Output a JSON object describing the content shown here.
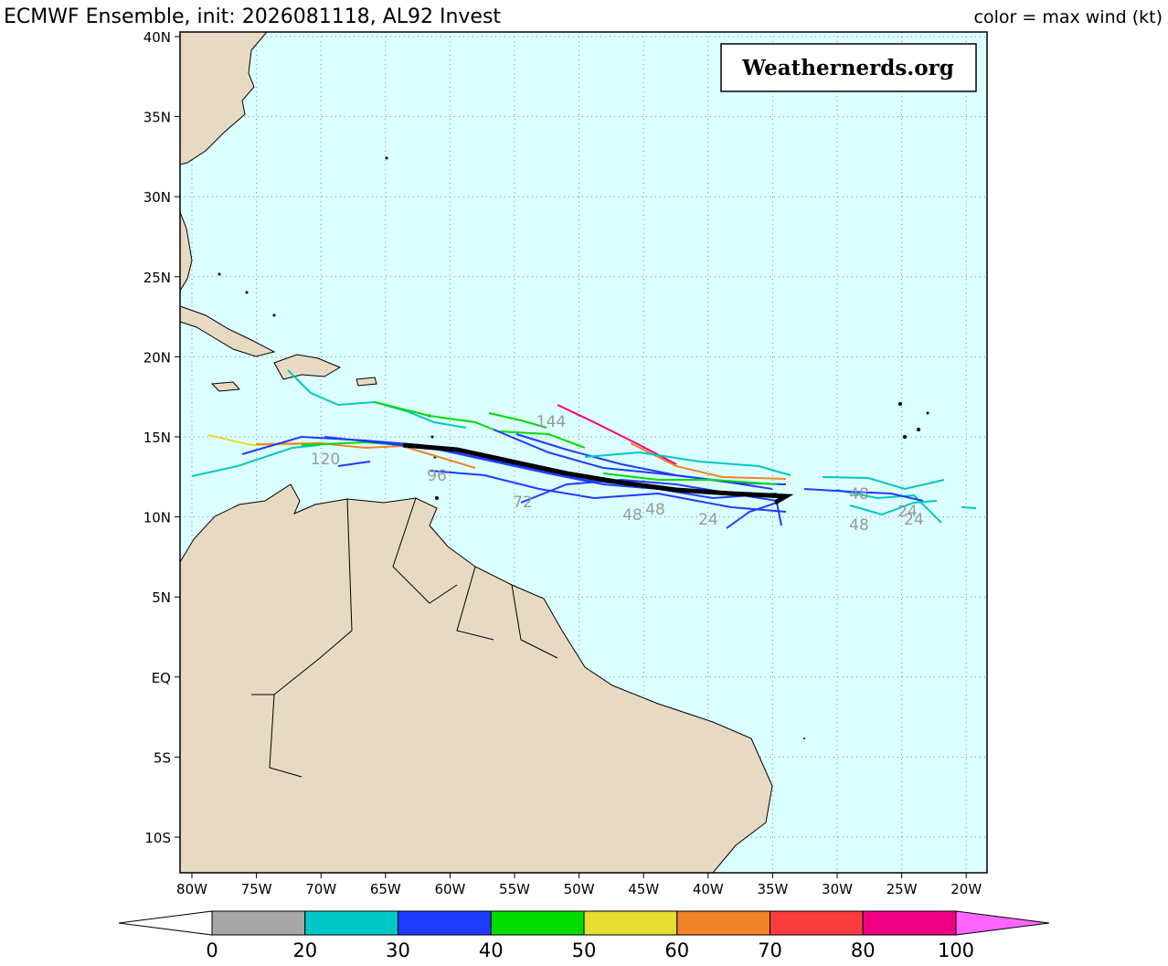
{
  "map": {
    "title": "ECMWF Ensemble, init: 2026081118, AL92 Invest",
    "legend_note": "color = max wind (kt)",
    "watermark": "Weathernerds.org",
    "lon_ticks": [
      "80W",
      "75W",
      "70W",
      "65W",
      "60W",
      "55W",
      "50W",
      "45W",
      "40W",
      "35W",
      "30W",
      "25W",
      "20W"
    ],
    "lat_ticks": [
      "40N",
      "35N",
      "30N",
      "25N",
      "20N",
      "15N",
      "10N",
      "5N",
      "EQ",
      "5S",
      "10S"
    ],
    "colorbar": {
      "bounds": [
        0,
        20,
        30,
        40,
        50,
        60,
        70,
        80,
        100
      ],
      "colors": [
        "#a6a6a6",
        "#00c8c8",
        "#1e3cff",
        "#00dc00",
        "#e6dc32",
        "#f08228",
        "#fa3c3c",
        "#f00082"
      ],
      "under_color": "#ffffff",
      "over_color": "#ff66ff"
    },
    "hour_labels": [
      "144",
      "120",
      "96",
      "72",
      "48",
      "48",
      "24",
      "48",
      "48",
      "24",
      "24"
    ]
  }
}
